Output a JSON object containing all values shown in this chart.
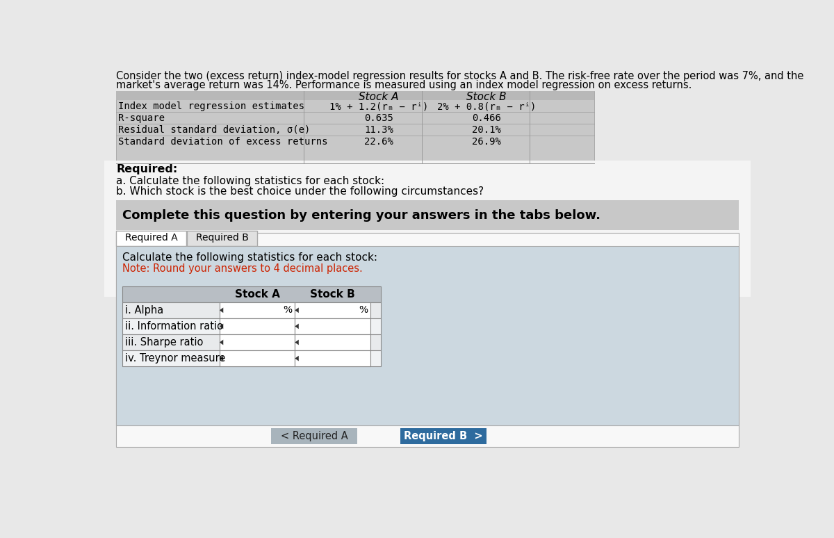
{
  "bg_color": "#e8e8e8",
  "intro_text_line1": "Consider the two (excess return) index-model regression results for stocks A and B. The risk-free rate over the period was 7%, and the",
  "intro_text_line2": "market's average return was 14%. Performance is measured using an index model regression on excess returns.",
  "table1_bg": "#d0d0d0",
  "table1_row_labels": [
    "Index model regression estimates",
    "R-square",
    "Residual standard deviation, σ(e)",
    "Standard deviation of excess returns"
  ],
  "stock_a_header": "Stock A",
  "stock_b_header": "Stock B",
  "stock_a_eq": "1% + 1.2(rₘ − rⁱ)",
  "stock_b_eq": "2% + 0.8(rₘ − rⁱ)",
  "stock_a_vals": [
    "0.635",
    "11.3%",
    "22.6%"
  ],
  "stock_b_vals": [
    "0.466",
    "20.1%",
    "26.9%"
  ],
  "required_label": "Required:",
  "req_a_text": "a. Calculate the following statistics for each stock:",
  "req_b_text": "b. Which stock is the best choice under the following circumstances?",
  "complete_box_text": "Complete this question by entering your answers in the tabs below.",
  "complete_box_bg": "#c8c8c8",
  "white_area_bg": "#f0f0f0",
  "tab_a_text": "Required A",
  "tab_b_text": "Required B",
  "content_bg": "#ccd8e0",
  "calc_line1": "Calculate the following statistics for each stock:",
  "calc_line2": "Note: Round your answers to 4 decimal places.",
  "calc_note_color": "#cc2200",
  "ans_row_labels": [
    "i. Alpha",
    "ii. Information ratio",
    "iii. Sharpe ratio",
    "iv. Treynor measure"
  ],
  "ans_col_a": "Stock A",
  "ans_col_b": "Stock B",
  "btn_req_a_text": "< Required A",
  "btn_req_b_text": "Required B  >",
  "btn_req_a_bg": "#a8b4bc",
  "btn_req_b_bg": "#2e6b9e",
  "btn_text_color_light": "#ffffff",
  "btn_text_color_dark": "#222222"
}
